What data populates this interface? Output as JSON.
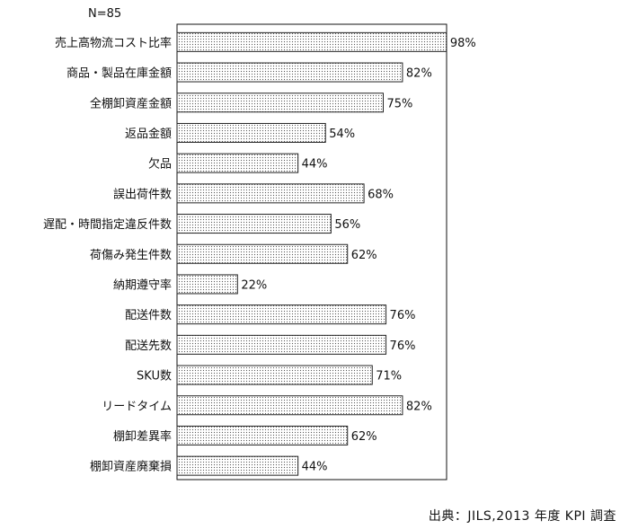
{
  "note": "N=85",
  "source": "出典：JILS,2013 年度 KPI 調査",
  "chart_data": {
    "type": "bar",
    "orientation": "horizontal",
    "xlim": [
      0,
      100
    ],
    "bar_fill": "dotted",
    "value_suffix": "%",
    "categories": [
      "売上高物流コスト比率",
      "商品・製品在庫金額",
      "全棚卸資産金額",
      "返品金額",
      "欠品",
      "誤出荷件数",
      "遅配・時間指定違反件数",
      "荷傷み発生件数",
      "納期遵守率",
      "配送件数",
      "配送先数",
      "SKU数",
      "リードタイム",
      "棚卸差異率",
      "棚卸資産廃棄損"
    ],
    "values": [
      98,
      82,
      75,
      54,
      44,
      68,
      56,
      62,
      22,
      76,
      76,
      71,
      82,
      62,
      44
    ],
    "colors": {
      "bar_stroke": "#222222",
      "dot": "#555555",
      "bar_bg": "#ffffff"
    }
  }
}
